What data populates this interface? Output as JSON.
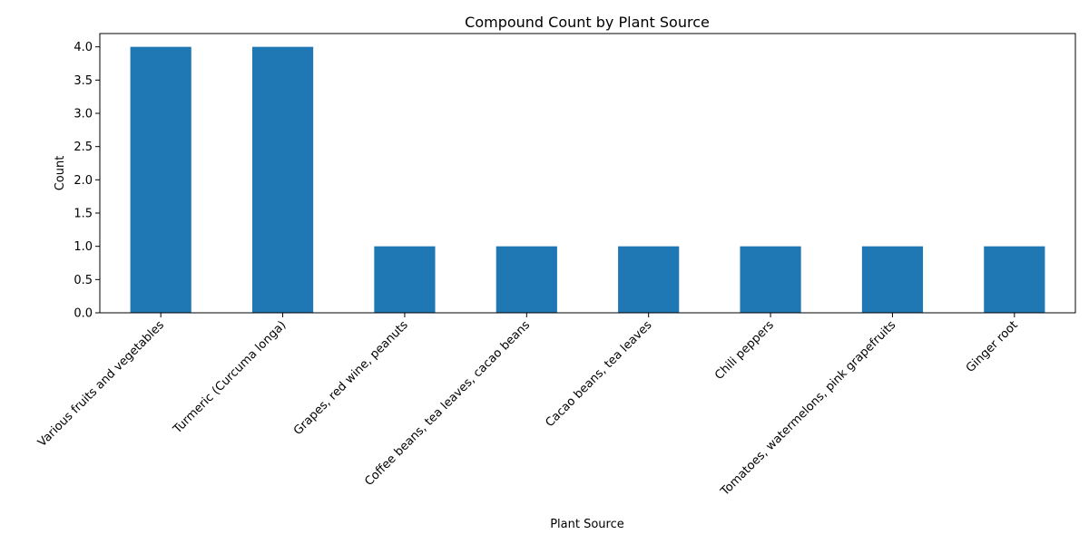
{
  "chart_data": {
    "type": "bar",
    "title": "Compound Count by Plant Source",
    "xlabel": "Plant Source",
    "ylabel": "Count",
    "categories": [
      "Various fruits and vegetables",
      "Turmeric (Curcuma longa)",
      "Grapes, red wine, peanuts",
      "Coffee beans, tea leaves, cacao beans",
      "Cacao beans, tea leaves",
      "Chili peppers",
      "Tomatoes, watermelons, pink grapefruits",
      "Ginger root"
    ],
    "values": [
      4,
      4,
      1,
      1,
      1,
      1,
      1,
      1
    ],
    "ylim": [
      0,
      4.2
    ],
    "yticks": [
      "0.0",
      "0.5",
      "1.0",
      "1.5",
      "2.0",
      "2.5",
      "3.0",
      "3.5",
      "4.0"
    ],
    "bar_color": "#1f77b4",
    "grid": false,
    "legend": "none"
  }
}
